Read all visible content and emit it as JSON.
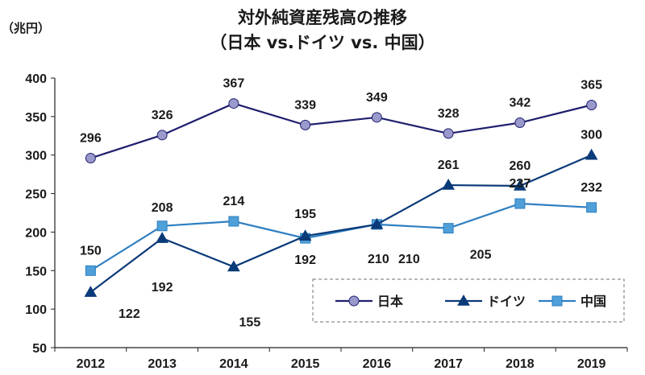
{
  "chart_data": {
    "type": "line",
    "title": "対外純資産残高の推移",
    "subtitle": "（日本 vs.ドイツ vs. 中国）",
    "ylabel": "（兆円）",
    "xlabel": "",
    "categories": [
      "2012",
      "2013",
      "2014",
      "2015",
      "2016",
      "2017",
      "2018",
      "2019"
    ],
    "ylim": [
      50,
      400
    ],
    "yticks": [
      50,
      100,
      150,
      200,
      250,
      300,
      350,
      400
    ],
    "grid": false,
    "legend_position": "bottom-right",
    "series": [
      {
        "name": "日本",
        "marker": "circle",
        "line_color": "#1f1f6e",
        "marker_color": "#9999cc",
        "values": [
          296,
          326,
          367,
          339,
          349,
          328,
          342,
          365
        ]
      },
      {
        "name": "ドイツ",
        "marker": "triangle",
        "line_color": "#0a3a78",
        "marker_color": "#0a3a78",
        "values": [
          122,
          192,
          155,
          195,
          210,
          261,
          260,
          300
        ]
      },
      {
        "name": "中国",
        "marker": "square",
        "line_color": "#2e7fc2",
        "marker_color": "#4f9fd8",
        "values": [
          150,
          208,
          214,
          192,
          210,
          205,
          237,
          232
        ]
      }
    ]
  }
}
